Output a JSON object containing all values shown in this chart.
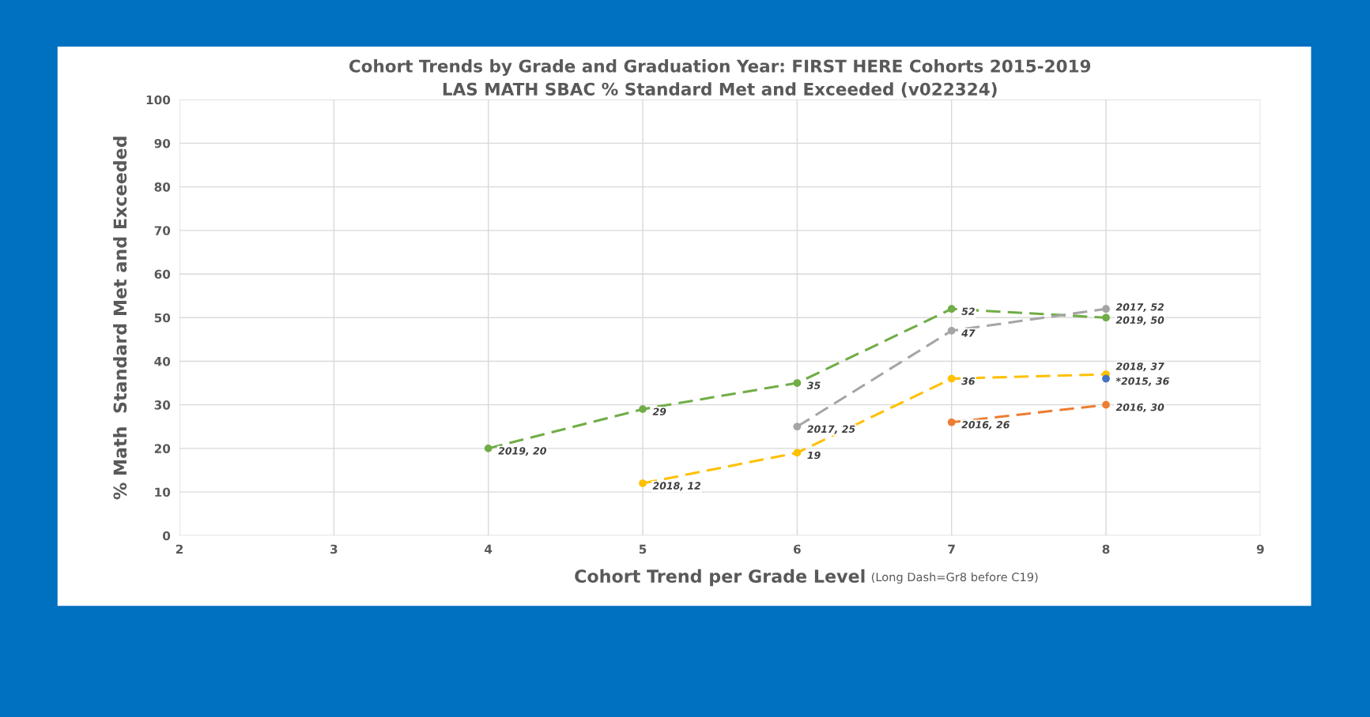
{
  "chart_data": {
    "type": "line",
    "title": "Cohort Trends by Grade and Graduation Year: FIRST HERE Cohorts 2015-2019\nLAS MATH SBAC % Standard Met and Exceeded (v022324)",
    "xlabel": "Cohort Trend per Grade Level",
    "ylabel": "% Math  Standard Met and Exceeded",
    "annotations": [
      "(Long Dash=Gr8 before C19)"
    ],
    "xlim": [
      2,
      9
    ],
    "xticks": [
      2,
      3,
      4,
      5,
      6,
      7,
      8,
      9
    ],
    "ylim": [
      0,
      100
    ],
    "yticks": [
      0,
      10,
      20,
      30,
      40,
      50,
      60,
      70,
      80,
      90,
      100
    ],
    "grid": true,
    "marker": "circle",
    "line_style": "dashed",
    "series": [
      {
        "color": "#70ad47",
        "x": [
          4,
          5,
          6,
          7,
          8
        ],
        "values": [
          20,
          29,
          35,
          52,
          50
        ],
        "value_labels": [
          "2019, 20",
          "29",
          "35",
          "52",
          "2019, 50"
        ]
      },
      {
        "color": "#ffc000",
        "x": [
          5,
          6,
          7,
          8
        ],
        "values": [
          12,
          19,
          36,
          37
        ],
        "value_labels": [
          "2018, 12",
          "19",
          "36",
          "2018, 37"
        ]
      },
      {
        "color": "#a5a5a5",
        "x": [
          6,
          7,
          8
        ],
        "values": [
          25,
          47,
          52
        ],
        "value_labels": [
          "2017, 25",
          "47",
          "2017, 52"
        ]
      },
      {
        "color": "#ed7d31",
        "x": [
          7,
          8
        ],
        "values": [
          26,
          30
        ],
        "value_labels": [
          "2016, 26",
          "2016, 30"
        ]
      },
      {
        "color": "#4472c4",
        "x": [
          8
        ],
        "values": [
          36
        ],
        "value_labels": [
          "*2015, 36"
        ]
      }
    ]
  }
}
